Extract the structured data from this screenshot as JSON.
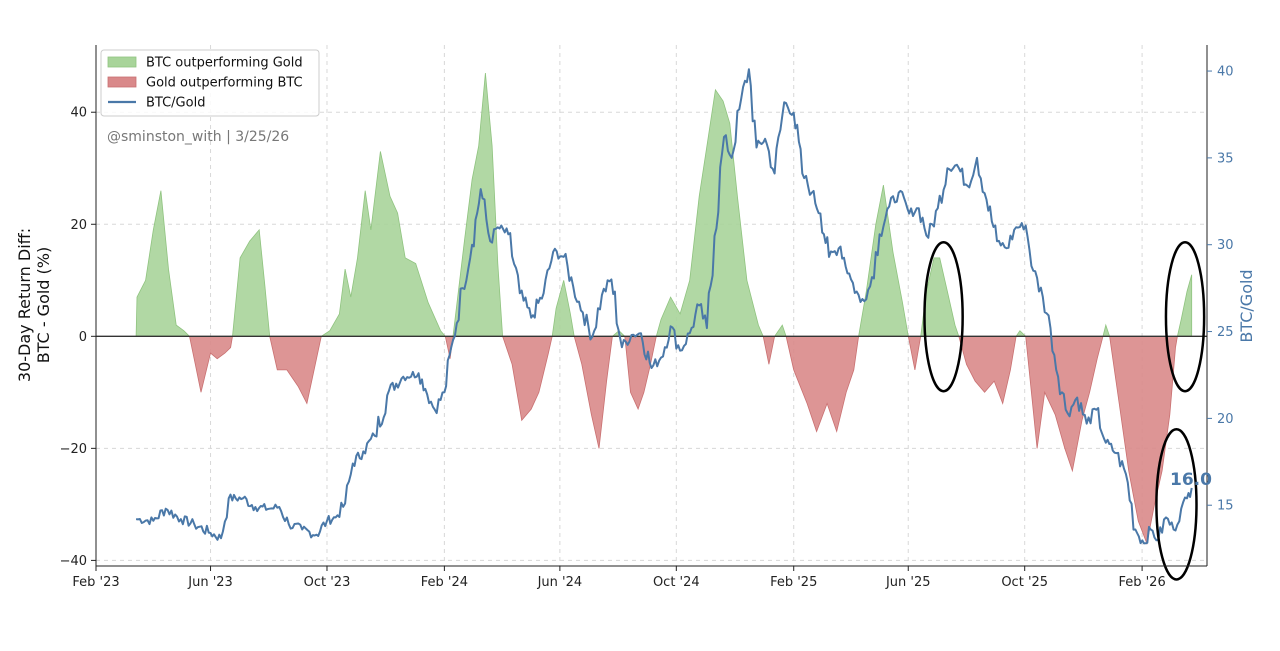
{
  "chart_data": {
    "type": "area+line",
    "title": "",
    "watermark": "@sminston_with  |  3/25/26",
    "ylabel_left": [
      "30-Day Return Diff:",
      "BTC - Gold (%)"
    ],
    "ylabel_right": "BTC/Gold",
    "xlim": [
      "2023-02-01",
      "2026-04-10"
    ],
    "ylim_left": [
      -41,
      52
    ],
    "ylim_right": [
      11.5,
      41.5
    ],
    "x_ticks": [
      {
        "date": "2023-02-01",
        "label": "Feb '23"
      },
      {
        "date": "2023-06-01",
        "label": "Jun '23"
      },
      {
        "date": "2023-10-01",
        "label": "Oct '23"
      },
      {
        "date": "2024-02-01",
        "label": "Feb '24"
      },
      {
        "date": "2024-06-01",
        "label": "Jun '24"
      },
      {
        "date": "2024-10-01",
        "label": "Oct '24"
      },
      {
        "date": "2025-02-01",
        "label": "Feb '25"
      },
      {
        "date": "2025-06-01",
        "label": "Jun '25"
      },
      {
        "date": "2025-10-01",
        "label": "Oct '25"
      },
      {
        "date": "2026-02-01",
        "label": "Feb '26"
      }
    ],
    "y_ticks_left": [
      {
        "value": 40,
        "label": "40"
      },
      {
        "value": 20,
        "label": "20"
      },
      {
        "value": 0,
        "label": "0"
      },
      {
        "value": -20,
        "label": "−20"
      },
      {
        "value": -40,
        "label": "−40"
      }
    ],
    "y_ticks_right": [
      {
        "value": 40,
        "label": "40"
      },
      {
        "value": 35,
        "label": "35"
      },
      {
        "value": 30,
        "label": "30"
      },
      {
        "value": 25,
        "label": "25"
      },
      {
        "value": 20,
        "label": "20"
      },
      {
        "value": 15,
        "label": "15"
      }
    ],
    "legend": [
      {
        "label": "BTC outperforming Gold",
        "kind": "patch",
        "color": "#a8d49a"
      },
      {
        "label": "Gold outperforming BTC",
        "kind": "patch",
        "color": "#d9898a"
      },
      {
        "label": "BTC/Gold",
        "kind": "line",
        "color": "#4a78a8"
      }
    ],
    "last_value_label": "16.0",
    "colors": {
      "positive": "#a8d49a",
      "negative": "#d9898a",
      "line": "#4a78a8",
      "zero_line": "#333333",
      "annotation": "#000000"
    },
    "return_diff": {
      "name": "30-Day Return Diff: BTC - Gold (%)",
      "points": [
        [
          "2023-03-15",
          0
        ],
        [
          "2023-03-16",
          7
        ],
        [
          "2023-03-25",
          10
        ],
        [
          "2023-04-02",
          19
        ],
        [
          "2023-04-10",
          26
        ],
        [
          "2023-04-18",
          12
        ],
        [
          "2023-04-26",
          2
        ],
        [
          "2023-05-04",
          1
        ],
        [
          "2023-05-10",
          0
        ],
        [
          "2023-05-16",
          -5
        ],
        [
          "2023-05-22",
          -10
        ],
        [
          "2023-06-01",
          -3
        ],
        [
          "2023-06-08",
          -4
        ],
        [
          "2023-06-16",
          -3
        ],
        [
          "2023-06-22",
          -2
        ],
        [
          "2023-06-24",
          0
        ],
        [
          "2023-07-02",
          14
        ],
        [
          "2023-07-12",
          17
        ],
        [
          "2023-07-22",
          19
        ],
        [
          "2023-07-28",
          9
        ],
        [
          "2023-08-02",
          0
        ],
        [
          "2023-08-10",
          -6
        ],
        [
          "2023-08-20",
          -6
        ],
        [
          "2023-09-01",
          -9
        ],
        [
          "2023-09-10",
          -12
        ],
        [
          "2023-09-20",
          -4
        ],
        [
          "2023-09-25",
          0
        ],
        [
          "2023-10-04",
          1
        ],
        [
          "2023-10-14",
          4
        ],
        [
          "2023-10-20",
          12
        ],
        [
          "2023-10-26",
          7
        ],
        [
          "2023-11-02",
          14
        ],
        [
          "2023-11-10",
          26
        ],
        [
          "2023-11-16",
          19
        ],
        [
          "2023-11-26",
          33
        ],
        [
          "2023-12-06",
          25
        ],
        [
          "2023-12-14",
          22
        ],
        [
          "2023-12-22",
          14
        ],
        [
          "2024-01-02",
          13
        ],
        [
          "2024-01-15",
          6
        ],
        [
          "2024-01-28",
          1
        ],
        [
          "2024-02-02",
          0
        ],
        [
          "2024-02-07",
          -4
        ],
        [
          "2024-02-10",
          0
        ],
        [
          "2024-02-15",
          7
        ],
        [
          "2024-02-22",
          17
        ],
        [
          "2024-03-01",
          28
        ],
        [
          "2024-03-08",
          34
        ],
        [
          "2024-03-15",
          47
        ],
        [
          "2024-03-22",
          34
        ],
        [
          "2024-03-28",
          13
        ],
        [
          "2024-04-02",
          0
        ],
        [
          "2024-04-12",
          -5
        ],
        [
          "2024-04-22",
          -15
        ],
        [
          "2024-05-02",
          -13
        ],
        [
          "2024-05-10",
          -10
        ],
        [
          "2024-05-20",
          -3
        ],
        [
          "2024-05-24",
          0
        ],
        [
          "2024-05-28",
          5
        ],
        [
          "2024-06-05",
          10
        ],
        [
          "2024-06-12",
          4
        ],
        [
          "2024-06-16",
          0
        ],
        [
          "2024-06-24",
          -5
        ],
        [
          "2024-07-04",
          -14
        ],
        [
          "2024-07-12",
          -20
        ],
        [
          "2024-07-20",
          -8
        ],
        [
          "2024-07-26",
          0
        ],
        [
          "2024-08-02",
          1
        ],
        [
          "2024-08-08",
          0
        ],
        [
          "2024-08-14",
          -10
        ],
        [
          "2024-08-22",
          -13
        ],
        [
          "2024-08-28",
          -10
        ],
        [
          "2024-09-04",
          -5
        ],
        [
          "2024-09-10",
          0
        ],
        [
          "2024-09-15",
          3
        ],
        [
          "2024-09-25",
          7
        ],
        [
          "2024-10-05",
          4
        ],
        [
          "2024-10-15",
          10
        ],
        [
          "2024-10-25",
          25
        ],
        [
          "2024-11-03",
          35
        ],
        [
          "2024-11-11",
          44
        ],
        [
          "2024-11-19",
          42
        ],
        [
          "2024-11-26",
          38
        ],
        [
          "2024-12-04",
          25
        ],
        [
          "2024-12-14",
          10
        ],
        [
          "2024-12-26",
          2
        ],
        [
          "2024-12-31",
          0
        ],
        [
          "2025-01-06",
          -5
        ],
        [
          "2025-01-12",
          0
        ],
        [
          "2025-01-20",
          2
        ],
        [
          "2025-01-24",
          0
        ],
        [
          "2025-02-01",
          -6
        ],
        [
          "2025-02-15",
          -12
        ],
        [
          "2025-02-25",
          -17
        ],
        [
          "2025-03-08",
          -12
        ],
        [
          "2025-03-18",
          -17
        ],
        [
          "2025-03-28",
          -10
        ],
        [
          "2025-04-05",
          -6
        ],
        [
          "2025-04-10",
          0
        ],
        [
          "2025-04-18",
          8
        ],
        [
          "2025-04-28",
          20
        ],
        [
          "2025-05-06",
          27
        ],
        [
          "2025-05-16",
          15
        ],
        [
          "2025-05-26",
          6
        ],
        [
          "2025-06-01",
          0
        ],
        [
          "2025-06-08",
          -6
        ],
        [
          "2025-06-14",
          0
        ],
        [
          "2025-06-20",
          8
        ],
        [
          "2025-06-28",
          14
        ],
        [
          "2025-07-04",
          14
        ],
        [
          "2025-07-12",
          8
        ],
        [
          "2025-07-20",
          2
        ],
        [
          "2025-07-24",
          0
        ],
        [
          "2025-08-01",
          -5
        ],
        [
          "2025-08-10",
          -8
        ],
        [
          "2025-08-20",
          -10
        ],
        [
          "2025-08-30",
          -8
        ],
        [
          "2025-09-08",
          -12
        ],
        [
          "2025-09-16",
          -6
        ],
        [
          "2025-09-22",
          0
        ],
        [
          "2025-09-26",
          1
        ],
        [
          "2025-10-02",
          0
        ],
        [
          "2025-10-08",
          -10
        ],
        [
          "2025-10-14",
          -20
        ],
        [
          "2025-10-22",
          -10
        ],
        [
          "2025-11-02",
          -14
        ],
        [
          "2025-11-12",
          -20
        ],
        [
          "2025-11-20",
          -24
        ],
        [
          "2025-11-30",
          -15
        ],
        [
          "2025-12-08",
          -10
        ],
        [
          "2025-12-16",
          -4
        ],
        [
          "2025-12-22",
          0
        ],
        [
          "2025-12-25",
          2
        ],
        [
          "2025-12-29",
          0
        ],
        [
          "2026-01-08",
          -12
        ],
        [
          "2026-01-18",
          -24
        ],
        [
          "2026-01-28",
          -33
        ],
        [
          "2026-02-06",
          -37
        ],
        [
          "2026-02-14",
          -30
        ],
        [
          "2026-02-22",
          -24
        ],
        [
          "2026-03-02",
          -14
        ],
        [
          "2026-03-08",
          -2
        ],
        [
          "2026-03-10",
          0
        ],
        [
          "2026-03-14",
          3
        ],
        [
          "2026-03-20",
          8
        ],
        [
          "2026-03-25",
          11
        ]
      ]
    },
    "btc_gold": {
      "name": "BTC/Gold",
      "points": [
        [
          "2023-03-15",
          14.2
        ],
        [
          "2023-04-02",
          14.1
        ],
        [
          "2023-04-15",
          14.8
        ],
        [
          "2023-05-01",
          14.2
        ],
        [
          "2023-05-15",
          13.9
        ],
        [
          "2023-06-01",
          13.4
        ],
        [
          "2023-06-12",
          13.1
        ],
        [
          "2023-06-20",
          15.4
        ],
        [
          "2023-07-05",
          15.4
        ],
        [
          "2023-07-18",
          14.9
        ],
        [
          "2023-08-02",
          14.8
        ],
        [
          "2023-08-12",
          14.9
        ],
        [
          "2023-08-22",
          13.9
        ],
        [
          "2023-09-05",
          13.6
        ],
        [
          "2023-09-20",
          13.3
        ],
        [
          "2023-10-01",
          14.1
        ],
        [
          "2023-10-10",
          14.3
        ],
        [
          "2023-10-20",
          15.1
        ],
        [
          "2023-10-28",
          17.4
        ],
        [
          "2023-11-08",
          18.1
        ],
        [
          "2023-11-20",
          19.0
        ],
        [
          "2023-12-05",
          21.6
        ],
        [
          "2023-12-20",
          22.4
        ],
        [
          "2024-01-05",
          22.6
        ],
        [
          "2024-01-12",
          21.7
        ],
        [
          "2024-01-22",
          20.5
        ],
        [
          "2024-02-01",
          21.5
        ],
        [
          "2024-02-10",
          24.5
        ],
        [
          "2024-02-20",
          27.5
        ],
        [
          "2024-03-01",
          30.0
        ],
        [
          "2024-03-10",
          33.2
        ],
        [
          "2024-03-20",
          30.2
        ],
        [
          "2024-03-28",
          31.0
        ],
        [
          "2024-04-08",
          30.6
        ],
        [
          "2024-04-20",
          27.2
        ],
        [
          "2024-05-02",
          25.8
        ],
        [
          "2024-05-15",
          27.2
        ],
        [
          "2024-05-25",
          29.6
        ],
        [
          "2024-06-05",
          29.3
        ],
        [
          "2024-06-15",
          27.6
        ],
        [
          "2024-06-25",
          26.1
        ],
        [
          "2024-07-05",
          24.7
        ],
        [
          "2024-07-15",
          27.1
        ],
        [
          "2024-07-25",
          28.0
        ],
        [
          "2024-08-05",
          24.1
        ],
        [
          "2024-08-15",
          24.8
        ],
        [
          "2024-08-25",
          24.9
        ],
        [
          "2024-09-05",
          22.9
        ],
        [
          "2024-09-15",
          23.5
        ],
        [
          "2024-09-25",
          25.3
        ],
        [
          "2024-10-05",
          23.9
        ],
        [
          "2024-10-15",
          24.9
        ],
        [
          "2024-10-25",
          26.5
        ],
        [
          "2024-11-02",
          25.2
        ],
        [
          "2024-11-10",
          30.5
        ],
        [
          "2024-11-20",
          36.2
        ],
        [
          "2024-11-28",
          35.0
        ],
        [
          "2024-12-06",
          37.8
        ],
        [
          "2024-12-16",
          40.1
        ],
        [
          "2024-12-24",
          35.6
        ],
        [
          "2025-01-02",
          36.1
        ],
        [
          "2025-01-12",
          34.1
        ],
        [
          "2025-01-22",
          38.2
        ],
        [
          "2025-02-01",
          37.6
        ],
        [
          "2025-02-10",
          34.1
        ],
        [
          "2025-02-20",
          33.0
        ],
        [
          "2025-03-01",
          31.8
        ],
        [
          "2025-03-10",
          29.3
        ],
        [
          "2025-03-22",
          29.9
        ],
        [
          "2025-04-02",
          28.0
        ],
        [
          "2025-04-12",
          26.7
        ],
        [
          "2025-04-22",
          27.6
        ],
        [
          "2025-05-02",
          30.6
        ],
        [
          "2025-05-12",
          32.2
        ],
        [
          "2025-05-22",
          33.0
        ],
        [
          "2025-06-02",
          31.8
        ],
        [
          "2025-06-12",
          32.1
        ],
        [
          "2025-06-22",
          30.4
        ],
        [
          "2025-07-02",
          32.1
        ],
        [
          "2025-07-12",
          34.4
        ],
        [
          "2025-07-22",
          34.6
        ],
        [
          "2025-08-02",
          33.4
        ],
        [
          "2025-08-12",
          35.0
        ],
        [
          "2025-08-22",
          32.6
        ],
        [
          "2025-09-02",
          30.2
        ],
        [
          "2025-09-12",
          29.8
        ],
        [
          "2025-09-22",
          31.0
        ],
        [
          "2025-10-02",
          31.1
        ],
        [
          "2025-10-10",
          28.5
        ],
        [
          "2025-10-20",
          27.0
        ],
        [
          "2025-10-28",
          25.2
        ],
        [
          "2025-11-05",
          22.4
        ],
        [
          "2025-11-15",
          20.3
        ],
        [
          "2025-11-25",
          21.2
        ],
        [
          "2025-12-05",
          19.7
        ],
        [
          "2025-12-15",
          20.5
        ],
        [
          "2025-12-25",
          18.6
        ],
        [
          "2026-01-05",
          18.0
        ],
        [
          "2026-01-15",
          16.8
        ],
        [
          "2026-01-25",
          13.6
        ],
        [
          "2026-02-03",
          12.8
        ],
        [
          "2026-02-10",
          13.6
        ],
        [
          "2026-02-18",
          13.0
        ],
        [
          "2026-02-26",
          14.3
        ],
        [
          "2026-03-06",
          13.6
        ],
        [
          "2026-03-14",
          14.8
        ],
        [
          "2026-03-20",
          15.4
        ],
        [
          "2026-03-25",
          16.0
        ]
      ]
    },
    "annotations": [
      {
        "type": "ellipse",
        "center_date": "2025-07-08",
        "center_y_left": 3.5,
        "half_width_days": 20,
        "half_height_left": 13.3
      },
      {
        "type": "ellipse",
        "center_date": "2026-03-18",
        "center_y_left": 3.5,
        "half_width_days": 20,
        "half_height_left": 13.3
      },
      {
        "type": "ellipse",
        "center_date": "2026-03-09",
        "center_y_left": -30,
        "half_width_days": 21,
        "half_height_left": 13.4
      }
    ]
  }
}
